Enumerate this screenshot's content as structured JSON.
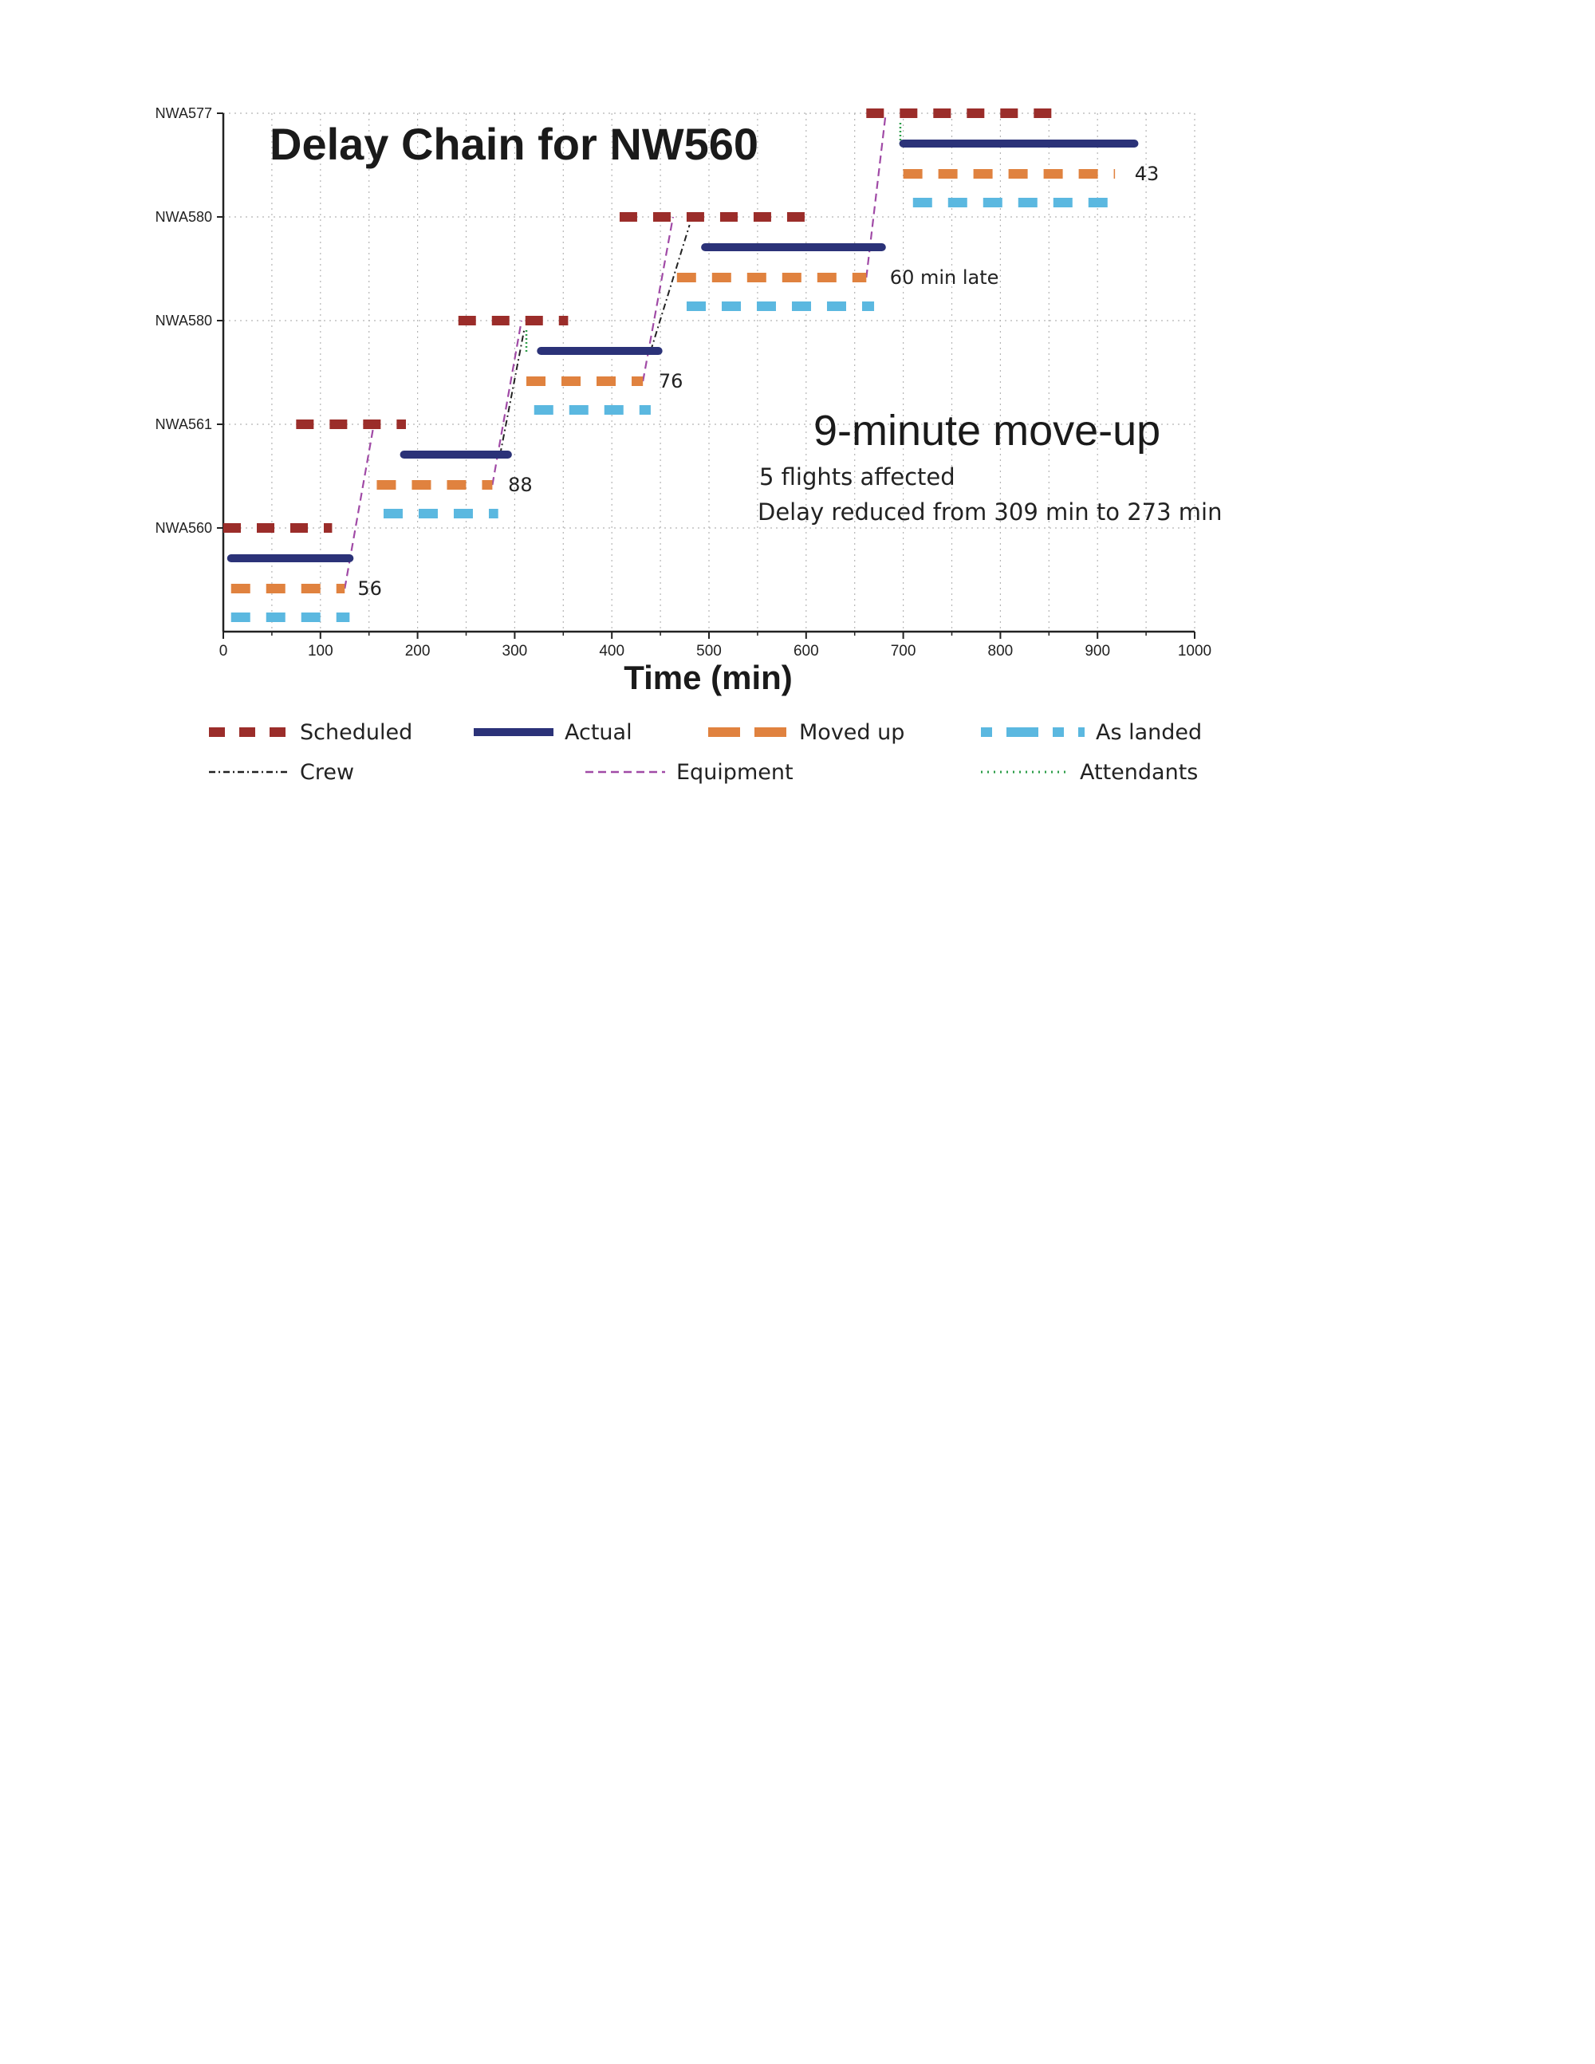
{
  "chart_data": {
    "type": "line",
    "title": "Delay Chain for NW560",
    "xlabel": "Time (min)",
    "ylabel": "",
    "xlim": [
      0,
      1000
    ],
    "xticks": [
      0,
      100,
      200,
      300,
      400,
      500,
      600,
      700,
      800,
      900,
      1000
    ],
    "grid": true,
    "flights": [
      "NWA560",
      "NWA561",
      "NWA580",
      "NWA580",
      "NWA577"
    ],
    "series": [
      {
        "name": "Scheduled",
        "color": "#9b2d2a",
        "style": "dashed-thick",
        "segments": [
          {
            "flight_index": 0,
            "x": [
              0,
              112
            ]
          },
          {
            "flight_index": 1,
            "x": [
              75,
              188
            ]
          },
          {
            "flight_index": 2,
            "x": [
              242,
              355
            ]
          },
          {
            "flight_index": 3,
            "x": [
              408,
              605
            ]
          },
          {
            "flight_index": 4,
            "x": [
              662,
              868
            ]
          }
        ]
      },
      {
        "name": "Actual",
        "color": "#2b3278",
        "style": "solid",
        "segments": [
          {
            "flight_index": 0,
            "x": [
              8,
              130
            ]
          },
          {
            "flight_index": 1,
            "x": [
              186,
              293
            ]
          },
          {
            "flight_index": 2,
            "x": [
              327,
              448
            ]
          },
          {
            "flight_index": 3,
            "x": [
              496,
              678
            ]
          },
          {
            "flight_index": 4,
            "x": [
              700,
              938
            ]
          }
        ]
      },
      {
        "name": "Moved up",
        "color": "#e0823f",
        "style": "dashed",
        "segments": [
          {
            "flight_index": 0,
            "x": [
              8,
              125
            ]
          },
          {
            "flight_index": 1,
            "x": [
              158,
              277
            ]
          },
          {
            "flight_index": 2,
            "x": [
              312,
              432
            ]
          },
          {
            "flight_index": 3,
            "x": [
              467,
              662
            ]
          },
          {
            "flight_index": 4,
            "x": [
              700,
              918
            ]
          }
        ]
      },
      {
        "name": "As landed",
        "color": "#5bb8e0",
        "style": "dashed",
        "segments": [
          {
            "flight_index": 0,
            "x": [
              8,
              130
            ]
          },
          {
            "flight_index": 1,
            "x": [
              165,
              283
            ]
          },
          {
            "flight_index": 2,
            "x": [
              320,
              440
            ]
          },
          {
            "flight_index": 3,
            "x": [
              477,
              670
            ]
          },
          {
            "flight_index": 4,
            "x": [
              710,
              920
            ]
          }
        ]
      },
      {
        "name": "Crew",
        "color": "#222222",
        "style": "dash-dot"
      },
      {
        "name": "Equipment",
        "color": "#a04aa6",
        "style": "dashed-thin"
      },
      {
        "name": "Attendants",
        "color": "#2e9e4a",
        "style": "dotted"
      }
    ],
    "delay_labels": [
      {
        "flight_index": 0,
        "x": 130,
        "text": "56"
      },
      {
        "flight_index": 1,
        "x": 285,
        "text": "88"
      },
      {
        "flight_index": 2,
        "x": 440,
        "text": "76"
      },
      {
        "flight_index": 3,
        "x": 678,
        "text": "60 min late"
      },
      {
        "flight_index": 4,
        "x": 930,
        "text": "43"
      }
    ],
    "annotations": {
      "headline": "9-minute move-up",
      "line1": "5 flights affected",
      "line2": "Delay reduced from 309 min to 273 min"
    },
    "legend_position": "bottom"
  }
}
